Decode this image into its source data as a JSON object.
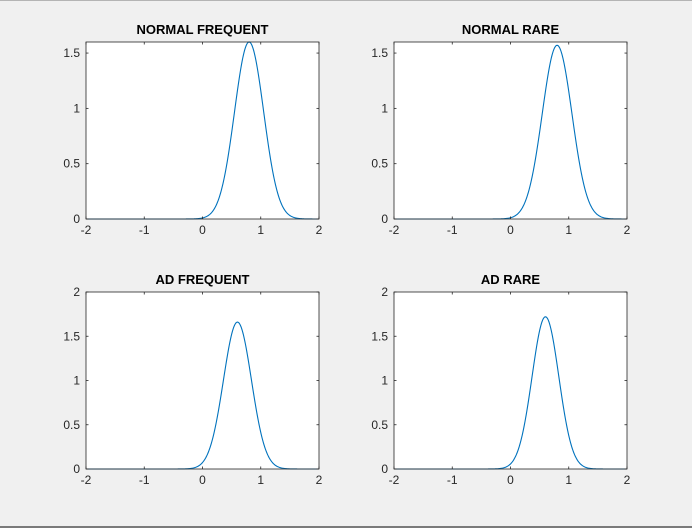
{
  "chart_data": [
    {
      "type": "line",
      "title": "NORMAL FREQUENT",
      "xlim": [
        -2,
        2
      ],
      "ylim": [
        0,
        1.6
      ],
      "xticks": [
        -2,
        -1,
        0,
        1,
        2
      ],
      "yticks": [
        0,
        0.5,
        1,
        1.5
      ],
      "xticklabels": [
        "-2",
        "-1",
        "0",
        "1",
        "2"
      ],
      "yticklabels": [
        "0",
        "0.5",
        "1",
        "1.5"
      ],
      "curve": {
        "shape": "gaussian",
        "mean": 0.8,
        "sd": 0.25,
        "peak": 1.6
      },
      "x": [
        -2,
        -1,
        0,
        0.2,
        0.4,
        0.6,
        0.8,
        1.0,
        1.2,
        1.4,
        1.6,
        2
      ],
      "y": [
        0,
        0,
        0.01,
        0.05,
        0.44,
        1.16,
        1.6,
        1.16,
        0.44,
        0.05,
        0.01,
        0
      ],
      "grid": false,
      "color": "#0072bd"
    },
    {
      "type": "line",
      "title": "NORMAL RARE",
      "xlim": [
        -2,
        2
      ],
      "ylim": [
        0,
        1.6
      ],
      "xticks": [
        -2,
        -1,
        0,
        1,
        2
      ],
      "yticks": [
        0,
        0.5,
        1,
        1.5
      ],
      "xticklabels": [
        "-2",
        "-1",
        "0",
        "1",
        "2"
      ],
      "yticklabels": [
        "0",
        "0.5",
        "1",
        "1.5"
      ],
      "curve": {
        "shape": "gaussian",
        "mean": 0.8,
        "sd": 0.255,
        "peak": 1.57
      },
      "x": [
        -2,
        -1,
        0,
        0.2,
        0.4,
        0.6,
        0.8,
        1.0,
        1.2,
        1.4,
        1.6,
        2
      ],
      "y": [
        0,
        0,
        0.01,
        0.05,
        0.46,
        1.15,
        1.57,
        1.15,
        0.46,
        0.05,
        0.01,
        0
      ],
      "grid": false,
      "color": "#0072bd"
    },
    {
      "type": "line",
      "title": "AD FREQUENT",
      "xlim": [
        -2,
        2
      ],
      "ylim": [
        0,
        2
      ],
      "xticks": [
        -2,
        -1,
        0,
        1,
        2
      ],
      "yticks": [
        0,
        0.5,
        1,
        1.5,
        2
      ],
      "xticklabels": [
        "-2",
        "-1",
        "0",
        "1",
        "2"
      ],
      "yticklabels": [
        "0",
        "0.5",
        "1",
        "1.5",
        "2"
      ],
      "curve": {
        "shape": "gaussian",
        "mean": 0.6,
        "sd": 0.24,
        "peak": 1.66
      },
      "x": [
        -2,
        -1,
        -0.2,
        0,
        0.2,
        0.4,
        0.6,
        0.8,
        1.0,
        1.2,
        1.4,
        2
      ],
      "y": [
        0,
        0,
        0.01,
        0.07,
        0.41,
        1.17,
        1.66,
        1.17,
        0.41,
        0.07,
        0.01,
        0
      ],
      "grid": false,
      "color": "#0072bd"
    },
    {
      "type": "line",
      "title": "AD RARE",
      "xlim": [
        -2,
        2
      ],
      "ylim": [
        0,
        2
      ],
      "xticks": [
        -2,
        -1,
        0,
        1,
        2
      ],
      "yticks": [
        0,
        0.5,
        1,
        1.5,
        2
      ],
      "xticklabels": [
        "-2",
        "-1",
        "0",
        "1",
        "2"
      ],
      "yticklabels": [
        "0",
        "0.5",
        "1",
        "1.5",
        "2"
      ],
      "curve": {
        "shape": "gaussian",
        "mean": 0.6,
        "sd": 0.23,
        "peak": 1.72
      },
      "x": [
        -2,
        -1,
        -0.2,
        0,
        0.2,
        0.4,
        0.6,
        0.8,
        1.0,
        1.2,
        1.4,
        2
      ],
      "y": [
        0,
        0,
        0.0,
        0.06,
        0.38,
        1.17,
        1.72,
        1.17,
        0.38,
        0.06,
        0.0,
        0
      ],
      "grid": false,
      "color": "#0072bd"
    }
  ]
}
